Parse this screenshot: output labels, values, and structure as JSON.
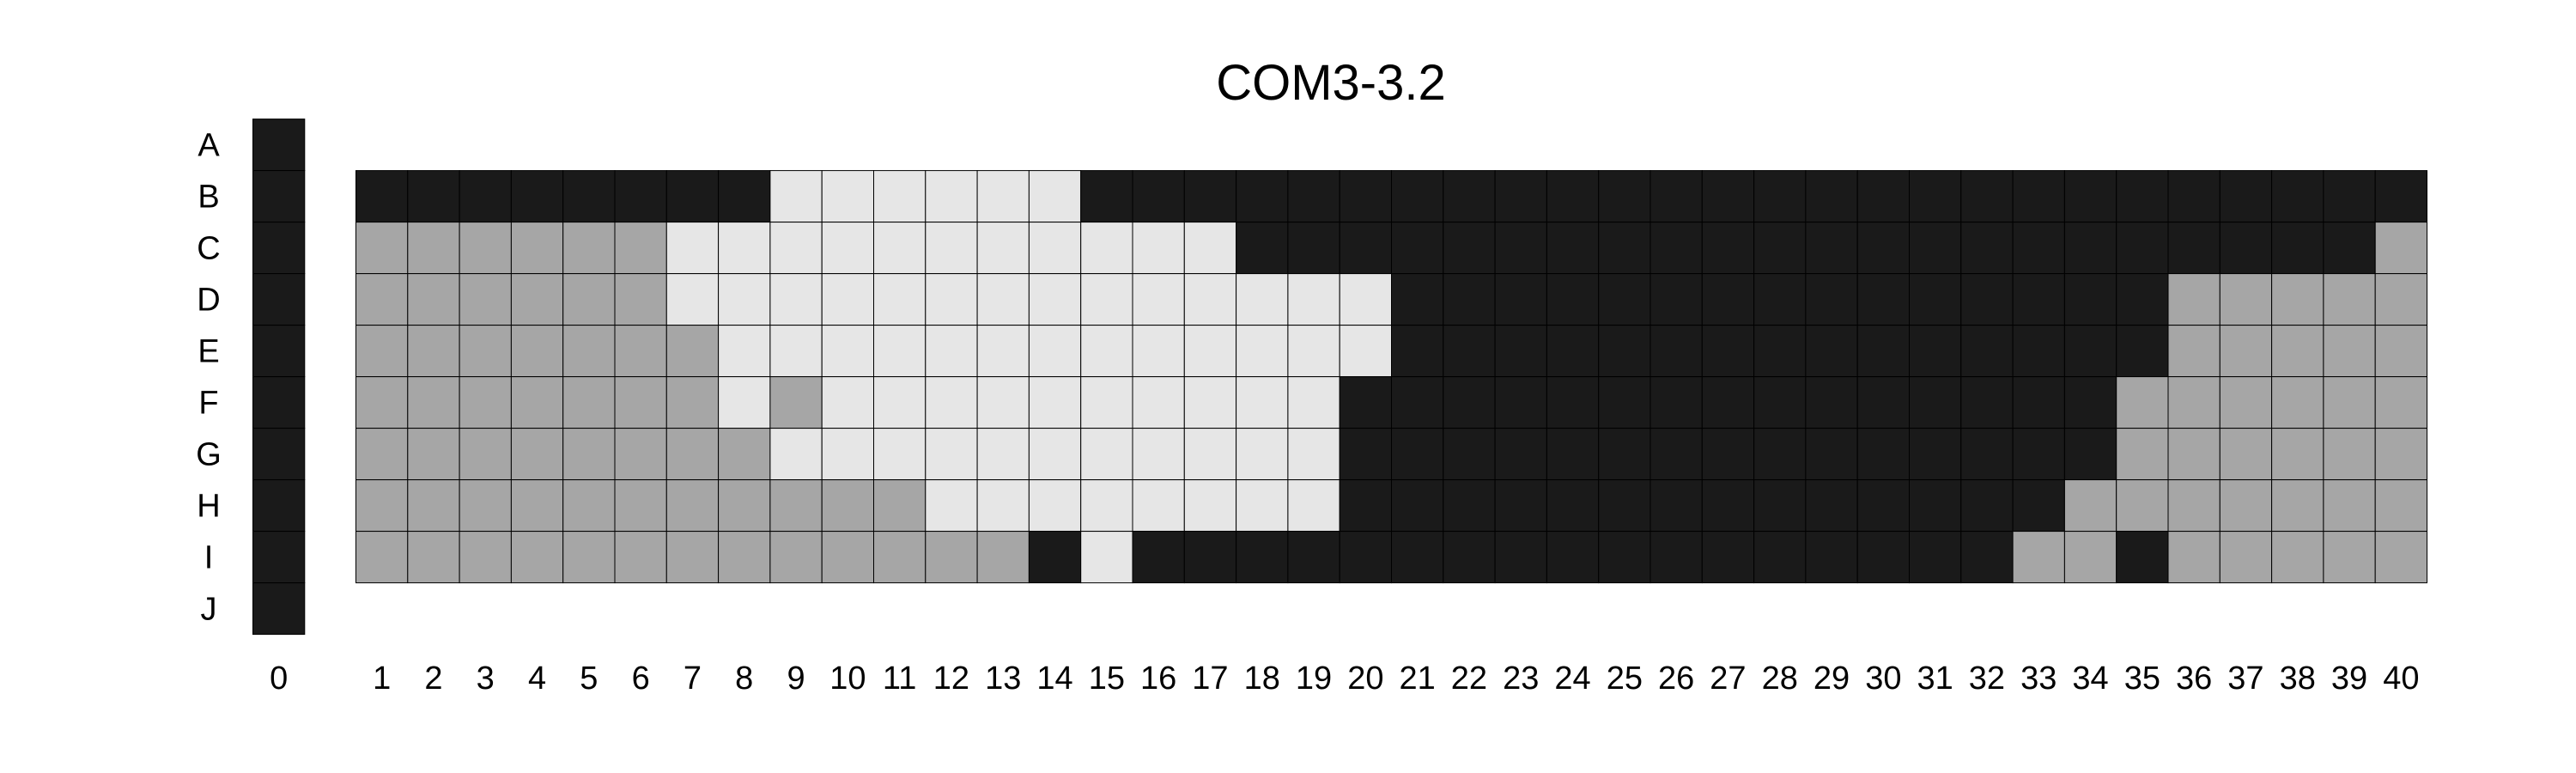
{
  "chart_data": {
    "type": "heatmap",
    "title": "COM3-3.2",
    "xlabel": "",
    "ylabel": "",
    "rows": [
      "A",
      "B",
      "C",
      "D",
      "E",
      "F",
      "G",
      "H",
      "I",
      "J"
    ],
    "columns": [
      1,
      2,
      3,
      4,
      5,
      6,
      7,
      8,
      9,
      10,
      11,
      12,
      13,
      14,
      15,
      16,
      17,
      18,
      19,
      20,
      21,
      22,
      23,
      24,
      25,
      26,
      27,
      28,
      29,
      30,
      31,
      32,
      33,
      34,
      35,
      36,
      37,
      38,
      39,
      40
    ],
    "column0_label": "0",
    "column0_values": [
      "K",
      "K",
      "K",
      "K",
      "K",
      "K",
      "K",
      "K",
      "K",
      "K"
    ],
    "legend": {
      "K": "black",
      "L": "light gray",
      "M": "medium gray"
    },
    "colors": {
      "K": "#1a1a1a",
      "L": "#e6e6e6",
      "M": "#a6a6a6"
    },
    "grid_rows_BI": [
      "KKKKKKKKLLLLLLKKKKKKKKKKKKKKKKKKKKKKKKKK",
      "MMMMMMLLLLLLLLLLLKKKKKKKKKKKKKKKKKKKKKKM",
      "MMMMMMLLLLLLLLLLLLLLKKKKKKKKKKKKKKKMMMMM",
      "MMMMMMMLLLLLLLLLLLLLKKKKKKKKKKKKKKKMMMMM",
      "MMMMMMMLMLLLLLLLLLLKKKKKKKKKKKKKKKMMMMMM",
      "MMMMMMMMLLLLLLLLLLLKKKKKKKKKKKKKKKMMMMMM",
      "MMMMMMMMMMMLLLLLLLLKKKKKKKKKKKKKKMMMMMMM",
      "MMMMMMMMMMMMMKLKKKKKKKKKKKKKKKKKMMKMMMMM"
    ],
    "grid": "on"
  }
}
